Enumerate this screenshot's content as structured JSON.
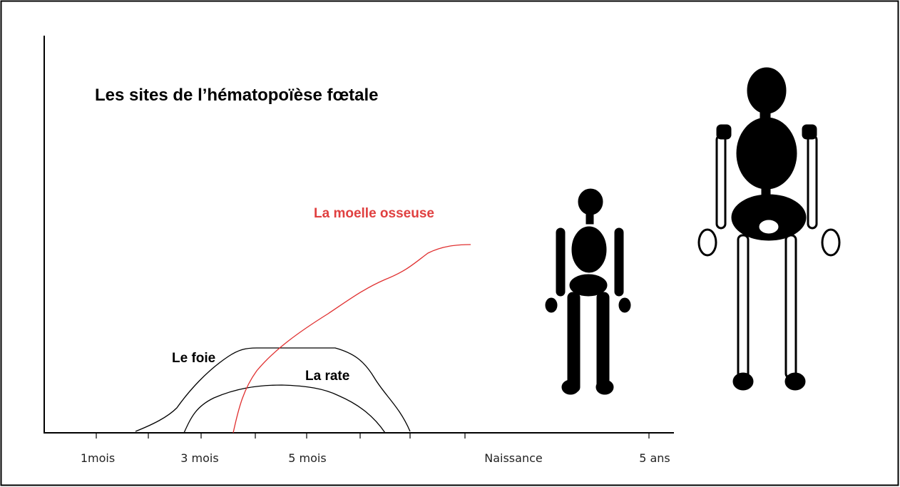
{
  "title": "Les sites de l’hématopoïèse fœtale",
  "curves": {
    "bone_marrow": "La moelle osseuse",
    "liver": "Le foie",
    "spleen": "La rate"
  },
  "x_axis": {
    "labels": [
      "1mois",
      "3 mois",
      "5 mois",
      "Naissance",
      "5 ans"
    ]
  }
}
